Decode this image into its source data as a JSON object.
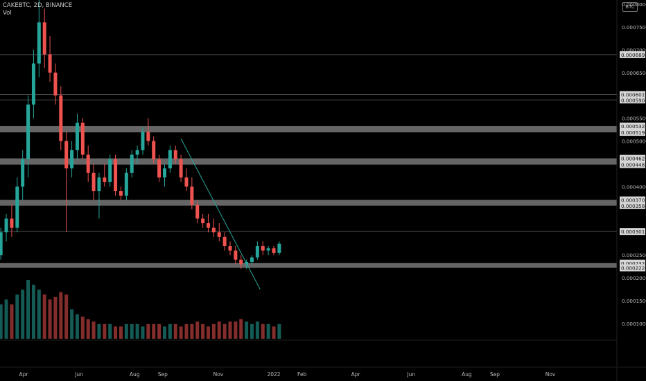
{
  "header": {
    "symbol_line": "CAKEBTC, 2D, BINANCE",
    "volume_label": "Vol",
    "currency_badge": "BTC"
  },
  "colors": {
    "background": "#000000",
    "up": "#26a69a",
    "down": "#ef5350",
    "zone": "#8c8c8c",
    "trendline": "#26a69a"
  },
  "chart_data": {
    "type": "candlestick",
    "y_axis": {
      "scale": "linear",
      "range": [
        7.95e-05,
        7.4e-05
      ],
      "ticks": [
        "0.00080000",
        "0.00075000",
        "0.00070000",
        "0.00065000",
        "0.00055000",
        "0.00050000",
        "0.00040000",
        "0.00025000",
        "0.00020000",
        "0.00015000",
        "0.00010000"
      ],
      "tick_values": [
        0.0008,
        0.00075,
        0.0007,
        0.00065,
        0.00055,
        0.0005,
        0.0004,
        0.00025,
        0.0002,
        0.00015,
        0.0001
      ]
    },
    "x_axis": {
      "months": [
        {
          "label": "Apr",
          "date": "2021-04-01"
        },
        {
          "label": "Jun",
          "date": "2021-06-01"
        },
        {
          "label": "Aug",
          "date": "2021-08-01"
        },
        {
          "label": "Sep",
          "date": "2021-09-01"
        },
        {
          "label": "Nov",
          "date": "2021-11-01"
        },
        {
          "label": "2022",
          "date": "2022-01-01"
        },
        {
          "label": "Feb",
          "date": "2022-02-01"
        },
        {
          "label": "Apr",
          "date": "2022-04-01"
        },
        {
          "label": "Jun",
          "date": "2022-06-01"
        },
        {
          "label": "Aug",
          "date": "2022-08-01"
        },
        {
          "label": "Sep",
          "date": "2022-09-01"
        },
        {
          "label": "Nov",
          "date": "2022-11-01"
        }
      ]
    },
    "horizontal_levels": [
      {
        "label": "0.00068930",
        "value": 0.0006893,
        "kind": "line"
      },
      {
        "label": "0.00060190",
        "value": 0.0006019,
        "kind": "line"
      },
      {
        "label": "0.00059000",
        "value": 0.00059,
        "kind": "line"
      },
      {
        "label": "0.00030170",
        "value": 0.0003017,
        "kind": "line"
      }
    ],
    "zones": [
      {
        "top": 0.0005328,
        "bottom": 0.000519,
        "top_label": "0.00053280",
        "bottom_label": "0.00051900"
      },
      {
        "top": 0.000462,
        "bottom": 0.0004483,
        "top_label": "0.00046200",
        "bottom_label": "0.00044830"
      },
      {
        "top": 0.0003709,
        "bottom": 0.0003584,
        "top_label": "0.00037090",
        "bottom_label": "0.00035840"
      },
      {
        "top": 0.0002324,
        "bottom": 0.000222,
        "top_label": "0.00023240",
        "bottom_label": "0.00022200"
      }
    ],
    "trendline": {
      "start": {
        "date": "2021-09-21",
        "value": 0.000505
      },
      "end": {
        "date": "2021-12-17",
        "value": 0.000175
      }
    },
    "candles": [
      {
        "t": "2021-03-01",
        "o": 0.00024,
        "h": 0.00027,
        "l": 0.00022,
        "c": 0.00025
      },
      {
        "t": "2021-03-07",
        "o": 0.00025,
        "h": 0.00031,
        "l": 0.00024,
        "c": 0.0003
      },
      {
        "t": "2021-03-13",
        "o": 0.0003,
        "h": 0.00034,
        "l": 0.00028,
        "c": 0.00033
      },
      {
        "t": "2021-03-19",
        "o": 0.00033,
        "h": 0.00036,
        "l": 0.00029,
        "c": 0.00031
      },
      {
        "t": "2021-03-25",
        "o": 0.00031,
        "h": 0.00042,
        "l": 0.0003,
        "c": 0.0004
      },
      {
        "t": "2021-03-31",
        "o": 0.0004,
        "h": 0.00048,
        "l": 0.00037,
        "c": 0.00046
      },
      {
        "t": "2021-04-06",
        "o": 0.00046,
        "h": 0.0006,
        "l": 0.00042,
        "c": 0.00058
      },
      {
        "t": "2021-04-12",
        "o": 0.00058,
        "h": 0.0007,
        "l": 0.00055,
        "c": 0.00067
      },
      {
        "t": "2021-04-18",
        "o": 0.00067,
        "h": 0.00082,
        "l": 0.00064,
        "c": 0.00076
      },
      {
        "t": "2021-04-24",
        "o": 0.00076,
        "h": 0.00079,
        "l": 0.00066,
        "c": 0.00069
      },
      {
        "t": "2021-04-30",
        "o": 0.00069,
        "h": 0.00073,
        "l": 0.00063,
        "c": 0.00065
      },
      {
        "t": "2021-05-06",
        "o": 0.00065,
        "h": 0.00067,
        "l": 0.00058,
        "c": 0.0006
      },
      {
        "t": "2021-05-12",
        "o": 0.0006,
        "h": 0.00062,
        "l": 0.00048,
        "c": 0.0005
      },
      {
        "t": "2021-05-18",
        "o": 0.0005,
        "h": 0.00052,
        "l": 0.0003,
        "c": 0.00044
      },
      {
        "t": "2021-05-24",
        "o": 0.00044,
        "h": 0.0005,
        "l": 0.00042,
        "c": 0.00048
      },
      {
        "t": "2021-05-30",
        "o": 0.00048,
        "h": 0.00056,
        "l": 0.00046,
        "c": 0.00054
      },
      {
        "t": "2021-06-05",
        "o": 0.00054,
        "h": 0.00055,
        "l": 0.00046,
        "c": 0.00047
      },
      {
        "t": "2021-06-11",
        "o": 0.00047,
        "h": 0.00049,
        "l": 0.00041,
        "c": 0.00043
      },
      {
        "t": "2021-06-17",
        "o": 0.00043,
        "h": 0.00045,
        "l": 0.00037,
        "c": 0.00039
      },
      {
        "t": "2021-06-23",
        "o": 0.00039,
        "h": 0.00043,
        "l": 0.00033,
        "c": 0.00042
      },
      {
        "t": "2021-06-29",
        "o": 0.00042,
        "h": 0.00045,
        "l": 0.0004,
        "c": 0.00041
      },
      {
        "t": "2021-07-05",
        "o": 0.00041,
        "h": 0.00047,
        "l": 0.0004,
        "c": 0.00046
      },
      {
        "t": "2021-07-11",
        "o": 0.00046,
        "h": 0.00047,
        "l": 0.00038,
        "c": 0.00039
      },
      {
        "t": "2021-07-17",
        "o": 0.00039,
        "h": 0.0004,
        "l": 0.00037,
        "c": 0.00038
      },
      {
        "t": "2021-07-23",
        "o": 0.00038,
        "h": 0.00044,
        "l": 0.00037,
        "c": 0.00043
      },
      {
        "t": "2021-07-29",
        "o": 0.00043,
        "h": 0.00048,
        "l": 0.00042,
        "c": 0.00047
      },
      {
        "t": "2021-08-04",
        "o": 0.00047,
        "h": 0.00049,
        "l": 0.00045,
        "c": 0.00048
      },
      {
        "t": "2021-08-10",
        "o": 0.00048,
        "h": 0.00053,
        "l": 0.00047,
        "c": 0.00052
      },
      {
        "t": "2021-08-16",
        "o": 0.00052,
        "h": 0.00055,
        "l": 0.00049,
        "c": 0.0005
      },
      {
        "t": "2021-08-22",
        "o": 0.0005,
        "h": 0.00051,
        "l": 0.00045,
        "c": 0.00046
      },
      {
        "t": "2021-08-28",
        "o": 0.00046,
        "h": 0.00047,
        "l": 0.00041,
        "c": 0.00042
      },
      {
        "t": "2021-09-03",
        "o": 0.00042,
        "h": 0.00045,
        "l": 0.0004,
        "c": 0.00044
      },
      {
        "t": "2021-09-09",
        "o": 0.00044,
        "h": 0.00049,
        "l": 0.00043,
        "c": 0.00048
      },
      {
        "t": "2021-09-15",
        "o": 0.00048,
        "h": 0.00049,
        "l": 0.00045,
        "c": 0.00046
      },
      {
        "t": "2021-09-21",
        "o": 0.00046,
        "h": 0.00047,
        "l": 0.00041,
        "c": 0.00042
      },
      {
        "t": "2021-09-27",
        "o": 0.00042,
        "h": 0.00044,
        "l": 0.00039,
        "c": 0.0004
      },
      {
        "t": "2021-10-03",
        "o": 0.0004,
        "h": 0.00042,
        "l": 0.00035,
        "c": 0.00036
      },
      {
        "t": "2021-10-09",
        "o": 0.00036,
        "h": 0.00037,
        "l": 0.00032,
        "c": 0.00033
      },
      {
        "t": "2021-10-15",
        "o": 0.00033,
        "h": 0.00034,
        "l": 0.00031,
        "c": 0.00032
      },
      {
        "t": "2021-10-21",
        "o": 0.00032,
        "h": 0.00034,
        "l": 0.0003,
        "c": 0.00031
      },
      {
        "t": "2021-10-27",
        "o": 0.00031,
        "h": 0.00033,
        "l": 0.00029,
        "c": 0.0003
      },
      {
        "t": "2021-11-02",
        "o": 0.0003,
        "h": 0.00032,
        "l": 0.00028,
        "c": 0.00029
      },
      {
        "t": "2021-11-08",
        "o": 0.00029,
        "h": 0.0003,
        "l": 0.00026,
        "c": 0.00027
      },
      {
        "t": "2021-11-14",
        "o": 0.00027,
        "h": 0.00028,
        "l": 0.00025,
        "c": 0.00026
      },
      {
        "t": "2021-11-20",
        "o": 0.00026,
        "h": 0.00027,
        "l": 0.00023,
        "c": 0.00024
      },
      {
        "t": "2021-11-26",
        "o": 0.00024,
        "h": 0.00025,
        "l": 0.00022,
        "c": 0.00023
      },
      {
        "t": "2021-12-02",
        "o": 0.00023,
        "h": 0.00024,
        "l": 0.00022,
        "c": 0.000235
      },
      {
        "t": "2021-12-08",
        "o": 0.000235,
        "h": 0.00025,
        "l": 0.00023,
        "c": 0.000245
      },
      {
        "t": "2021-12-14",
        "o": 0.000245,
        "h": 0.00028,
        "l": 0.00024,
        "c": 0.00027
      },
      {
        "t": "2021-12-20",
        "o": 0.00027,
        "h": 0.00028,
        "l": 0.00025,
        "c": 0.00026
      },
      {
        "t": "2021-12-26",
        "o": 0.00026,
        "h": 0.00027,
        "l": 0.00025,
        "c": 0.000265
      },
      {
        "t": "2022-01-01",
        "o": 0.000265,
        "h": 0.00027,
        "l": 0.00025,
        "c": 0.000255
      },
      {
        "t": "2022-01-07",
        "o": 0.000255,
        "h": 0.00028,
        "l": 0.00025,
        "c": 0.000275
      }
    ],
    "volume": [
      0.6,
      0.7,
      0.8,
      0.7,
      0.9,
      1.0,
      1.2,
      1.1,
      1.0,
      0.9,
      0.8,
      0.85,
      0.95,
      0.9,
      0.6,
      0.5,
      0.45,
      0.4,
      0.35,
      0.3,
      0.3,
      0.3,
      0.25,
      0.25,
      0.3,
      0.3,
      0.3,
      0.25,
      0.3,
      0.3,
      0.3,
      0.25,
      0.3,
      0.3,
      0.25,
      0.3,
      0.3,
      0.35,
      0.3,
      0.25,
      0.3,
      0.35,
      0.3,
      0.35,
      0.35,
      0.4,
      0.35,
      0.3,
      0.35,
      0.3,
      0.3,
      0.25,
      0.3
    ]
  }
}
